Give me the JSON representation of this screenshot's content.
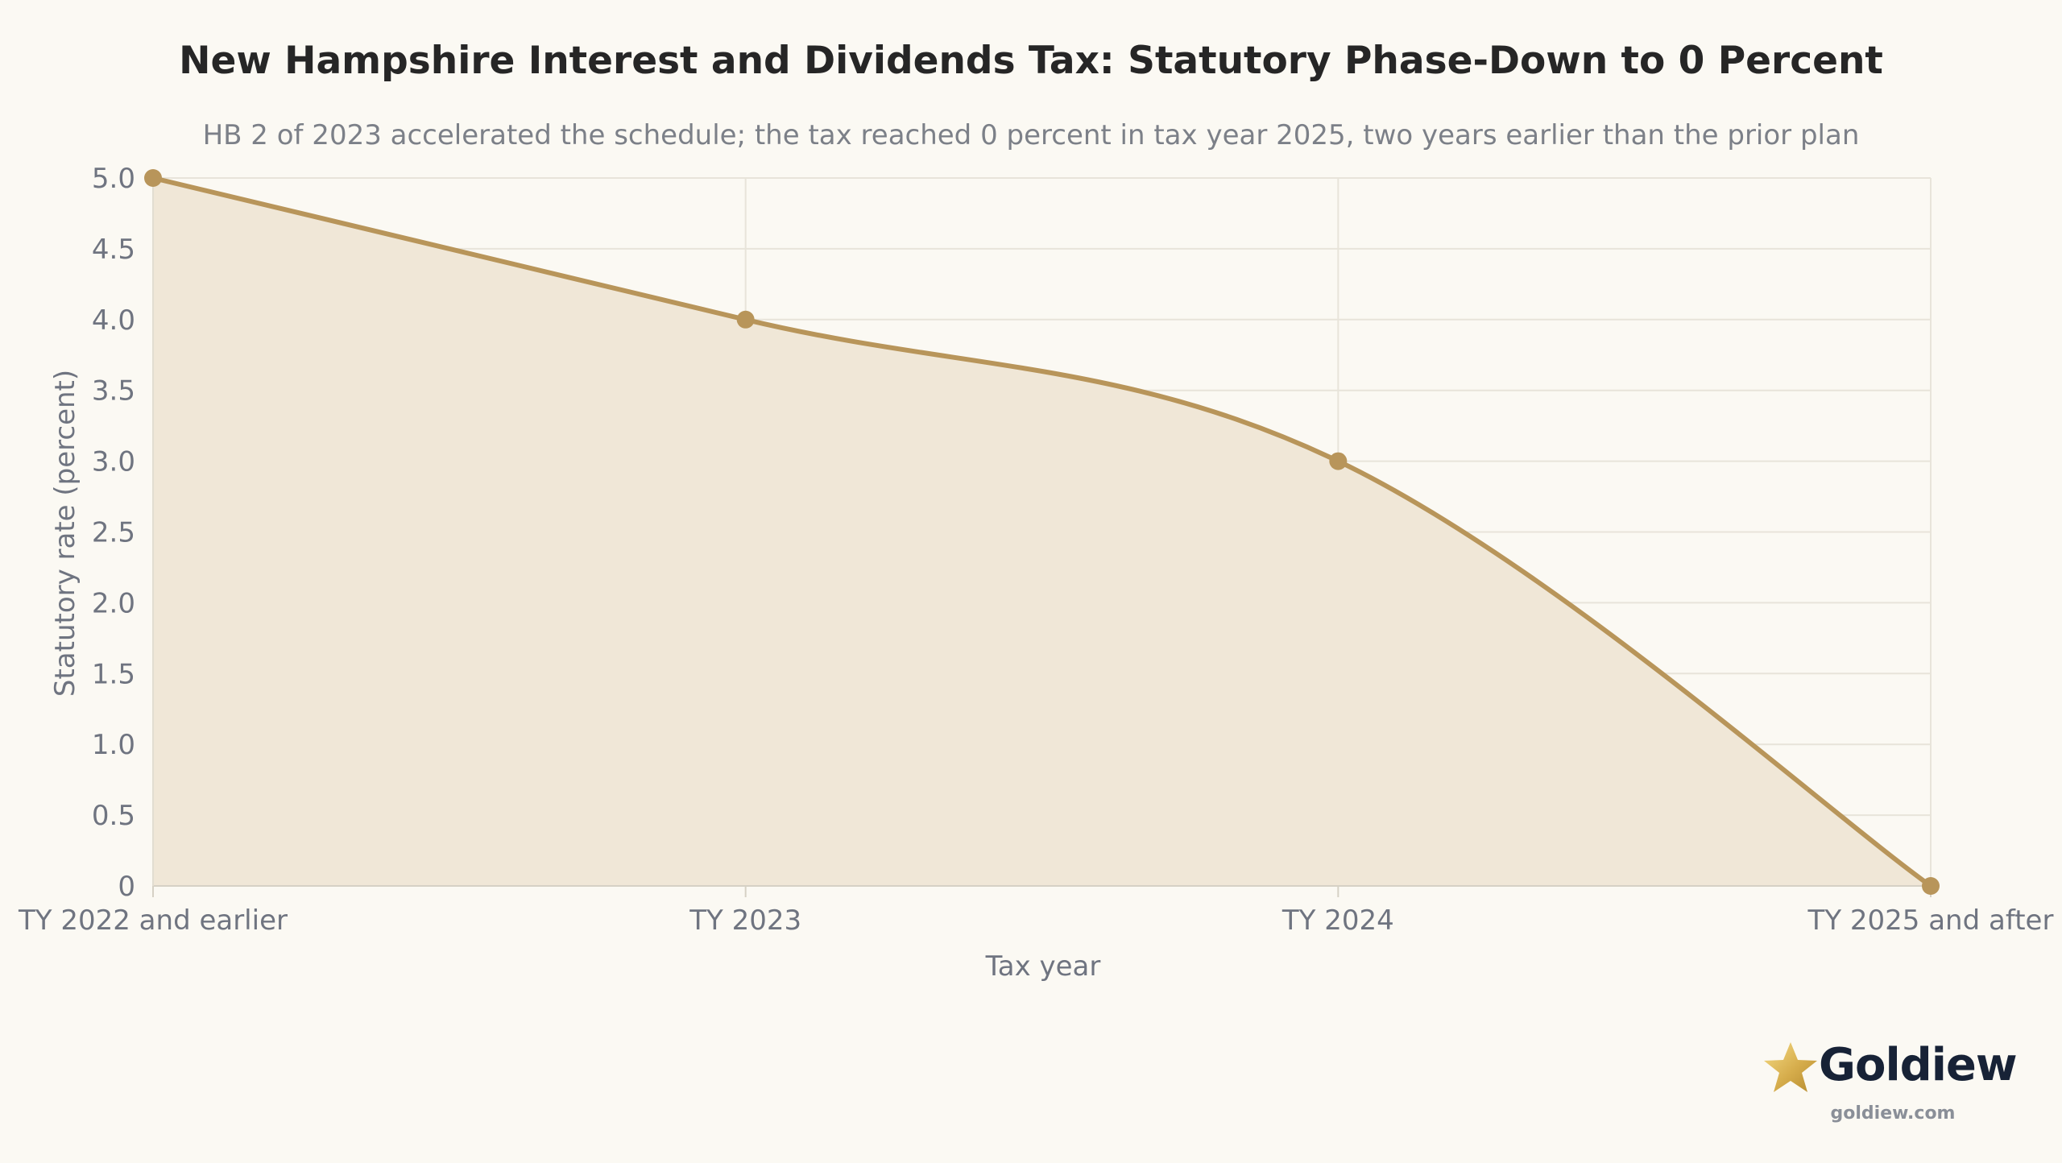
{
  "chart_data": {
    "type": "area",
    "title": "New Hampshire Interest and Dividends Tax: Statutory Phase-Down to 0 Percent",
    "subtitle": "HB 2 of 2023 accelerated the schedule; the tax reached 0 percent in tax year 2025, two years earlier than the prior plan",
    "xlabel": "Tax year",
    "ylabel": "Statutory rate (percent)",
    "categories": [
      "TY 2022 and earlier",
      "TY 2023",
      "TY 2024",
      "TY 2025 and after"
    ],
    "values": [
      5.0,
      4.0,
      3.0,
      0
    ],
    "ylim": [
      0,
      5
    ],
    "yticks": [
      "0",
      "0.5",
      "1.0",
      "1.5",
      "2.0",
      "2.5",
      "3.0",
      "3.5",
      "4.0",
      "4.5",
      "5.0"
    ],
    "grid": true,
    "legend": "none",
    "colors": {
      "line": "#b8955a",
      "fill": "#f0e7d7",
      "grid": "#e8e4da",
      "background": "#fbf9f3"
    }
  },
  "brand": {
    "name": "Goldiew",
    "url": "goldiew.com",
    "icon": "star-icon"
  }
}
